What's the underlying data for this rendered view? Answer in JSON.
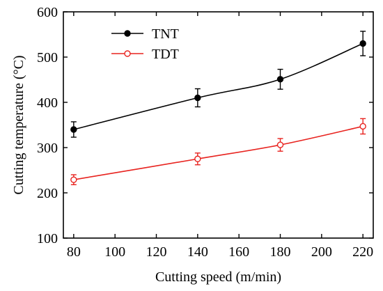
{
  "chart_data": {
    "type": "line",
    "xlabel": "Cutting speed (m/min)",
    "ylabel": "Cutting temperature (°C)",
    "xlim": [
      75,
      225
    ],
    "ylim": [
      100,
      600
    ],
    "xticks": [
      80,
      100,
      120,
      140,
      160,
      180,
      200,
      220
    ],
    "yticks": [
      100,
      200,
      300,
      400,
      500,
      600
    ],
    "legend_position": "top-left",
    "grid": false,
    "series": [
      {
        "name": "TNT",
        "color": "#000000",
        "marker": "filled-circle",
        "x": [
          80,
          140,
          180,
          220
        ],
        "y": [
          340,
          410,
          451,
          530
        ],
        "err": [
          17,
          20,
          22,
          27
        ]
      },
      {
        "name": "TDT",
        "color": "#e8231f",
        "marker": "open-circle",
        "x": [
          80,
          140,
          180,
          220
        ],
        "y": [
          229,
          275,
          306,
          347
        ],
        "err": [
          11,
          13,
          14,
          17
        ]
      }
    ]
  }
}
